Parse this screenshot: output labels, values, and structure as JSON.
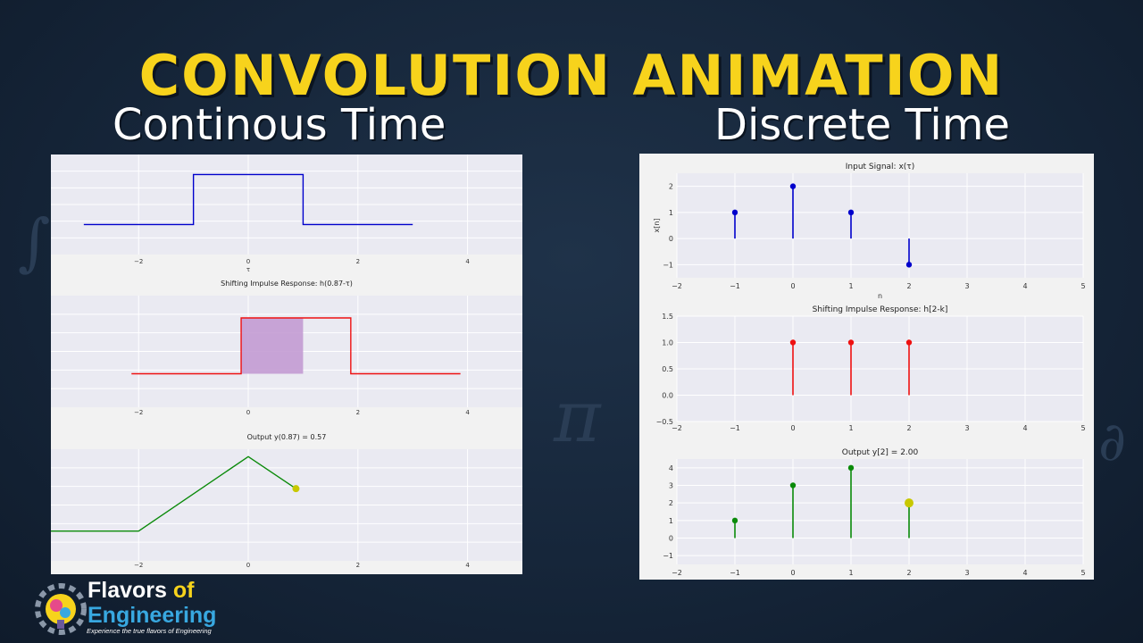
{
  "header": {
    "title": "CONVOLUTION ANIMATION",
    "ct_title": "Continous Time",
    "dt_title": "Discrete Time"
  },
  "logo": {
    "line1": "Flavors",
    "line1_accent": " of",
    "line2": "Engineering",
    "tagline": "Experience the true flavors of Engineering"
  },
  "colors": {
    "title_yellow": "#f7d31c",
    "blue": "#0000cc",
    "red": "#ee1111",
    "green": "#0a8a0a",
    "overlap_fill": "#c39bd3",
    "current_marker": "#c8c800"
  },
  "chart_data": [
    {
      "type": "line",
      "panel": "continuous",
      "title": "",
      "xlabel": "τ",
      "xticks": [
        "−2",
        "0",
        "2",
        "4"
      ],
      "xlim": [
        -3.6,
        5.0
      ],
      "ylim": [
        -0.6,
        1.4
      ],
      "series": [
        {
          "x": [
            -3,
            -1,
            -1,
            1,
            1,
            3
          ],
          "y": [
            0,
            0,
            1,
            1,
            0,
            0
          ],
          "color": "#0000cc"
        }
      ]
    },
    {
      "type": "line",
      "panel": "continuous",
      "title": "Shifting Impulse Response: h(0.87-τ)",
      "xticks": [
        "−2",
        "0",
        "2",
        "4"
      ],
      "xlim": [
        -3.6,
        5.0
      ],
      "ylim": [
        -0.6,
        1.4
      ],
      "overlap": [
        -0.13,
        1.0
      ],
      "series": [
        {
          "x": [
            -2.13,
            -0.13,
            -0.13,
            1.87,
            1.87,
            3.87
          ],
          "y": [
            0,
            0,
            1,
            1,
            0,
            0
          ],
          "color": "#ee1111"
        }
      ]
    },
    {
      "type": "line",
      "panel": "continuous",
      "title": "Output y(0.87) = 0.57",
      "xticks": [
        "−2",
        "0",
        "2",
        "4"
      ],
      "xlim": [
        -3.6,
        5.0
      ],
      "ylim": [
        -0.4,
        1.1
      ],
      "current": {
        "x": 0.87,
        "y": 0.57
      },
      "series": [
        {
          "x": [
            -3.6,
            -2,
            0,
            0.87
          ],
          "y": [
            0,
            0,
            1,
            0.57
          ],
          "color": "#0a8a0a"
        }
      ]
    },
    {
      "type": "scatter",
      "panel": "discrete",
      "title": "Input Signal: x(τ)",
      "xlabel": "n",
      "ylabel": "x[n]",
      "xlim": [
        -2,
        5
      ],
      "ylim": [
        -1.5,
        2.5
      ],
      "xticks": [
        "−2",
        "−1",
        "0",
        "1",
        "2",
        "3",
        "4",
        "5"
      ],
      "yticks": [
        "−1",
        "0",
        "1",
        "2"
      ],
      "series": [
        {
          "x": [
            -1,
            0,
            1,
            2
          ],
          "y": [
            1,
            2,
            1,
            -1
          ],
          "color": "#0000cc"
        }
      ]
    },
    {
      "type": "scatter",
      "panel": "discrete",
      "title": "Shifting Impulse Response: h[2-k]",
      "xlim": [
        -2,
        5
      ],
      "ylim": [
        -0.5,
        1.5
      ],
      "xticks": [
        "−2",
        "−1",
        "0",
        "1",
        "2",
        "3",
        "4",
        "5"
      ],
      "yticks": [
        "−0.5",
        "0.0",
        "0.5",
        "1.0",
        "1.5"
      ],
      "series": [
        {
          "x": [
            0,
            1,
            2
          ],
          "y": [
            1,
            1,
            1
          ],
          "color": "#ee1111"
        }
      ]
    },
    {
      "type": "scatter",
      "panel": "discrete",
      "title": "Output y[2] = 2.00",
      "xlim": [
        -2,
        5
      ],
      "ylim": [
        -1.5,
        4.5
      ],
      "xticks": [
        "−2",
        "−1",
        "0",
        "1",
        "2",
        "3",
        "4",
        "5"
      ],
      "yticks": [
        "−1",
        "0",
        "1",
        "2",
        "3",
        "4"
      ],
      "current": {
        "x": 2,
        "y": 2
      },
      "series": [
        {
          "x": [
            -1,
            0,
            1,
            2
          ],
          "y": [
            1,
            3,
            4,
            2
          ],
          "color": "#0a8a0a"
        }
      ]
    }
  ]
}
